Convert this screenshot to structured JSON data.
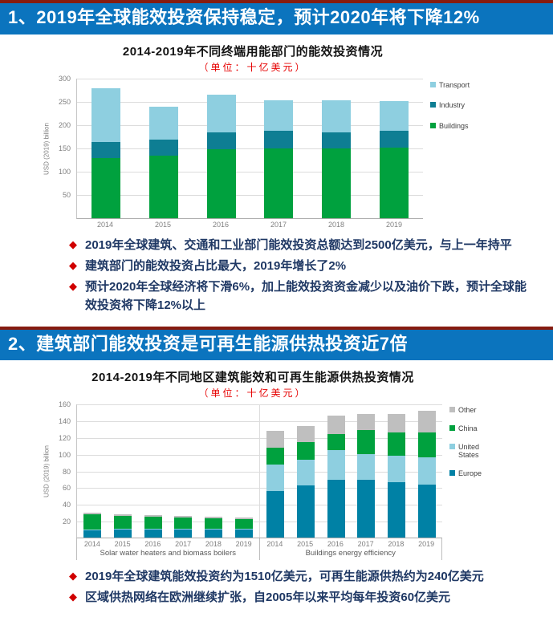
{
  "theme": {
    "header_bg": "#0B74BE",
    "accent_line": "#861C10",
    "bullet_diamond": "#D00000",
    "bullet_text": "#1F3864",
    "subtitle_color": "#E60000"
  },
  "sections": [
    {
      "header": "1、2019年全球能效投资保持稳定，预计2020年将下降12%",
      "bullets": [
        "2019年全球建筑、交通和工业部门能效投资总额达到2500亿美元，与上一年持平",
        "建筑部门的能效投资占比最大，2019年增长了2%",
        "预计2020年全球经济将下滑6%，加上能效投资资金减少以及油价下跌，预计全球能效投资将下降12%以上"
      ]
    },
    {
      "header": "2、建筑部门能效投资是可再生能源供热投资近7倍",
      "bullets": [
        "2019年全球建筑能效投资约为1510亿美元，可再生能源供热约为240亿美元",
        "区域供热网络在欧洲继续扩张，自2005年以来平均每年投资60亿美元"
      ]
    }
  ],
  "chart_data": [
    {
      "type": "bar",
      "stacked": true,
      "title": "2014-2019年不同终端用能部门的能效投资情况",
      "subtitle": "（单位：十亿美元）",
      "ylabel": "USD (2019) billion",
      "ylim": [
        0,
        300
      ],
      "ytick_step": 50,
      "grid": true,
      "legend_position": "right",
      "categories": [
        "2014",
        "2015",
        "2016",
        "2017",
        "2018",
        "2019"
      ],
      "series": [
        {
          "name": "Buildings",
          "color": "#00A13E",
          "values": [
            127,
            133,
            146,
            149,
            148,
            150
          ]
        },
        {
          "name": "Industry",
          "color": "#0E7E93",
          "values": [
            35,
            35,
            36,
            37,
            35,
            36
          ]
        },
        {
          "name": "Transport",
          "color": "#8ECFE0",
          "values": [
            115,
            70,
            82,
            65,
            69,
            64
          ]
        }
      ],
      "legend_order": [
        "Transport",
        "Industry",
        "Buildings"
      ]
    },
    {
      "type": "bar",
      "stacked": true,
      "title": "2014-2019年不同地区建筑能效和可再生能源供热投资情况",
      "subtitle": "（单位：十亿美元）",
      "ylabel": "USD (2019) billion",
      "ylim": [
        0,
        160
      ],
      "ytick_step": 20,
      "grid": true,
      "legend_position": "right",
      "series": [
        {
          "name": "Europe",
          "color": "#0081A5"
        },
        {
          "name": "United States",
          "color": "#8ECFE0"
        },
        {
          "name": "China",
          "color": "#00A13E"
        },
        {
          "name": "Other",
          "color": "#BFBFBF"
        }
      ],
      "groups": [
        {
          "label": "Solar water heaters and biomass boilers",
          "categories": [
            "2014",
            "2015",
            "2016",
            "2017",
            "2018",
            "2019"
          ],
          "series_values": {
            "Europe": [
              9,
              10,
              10,
              10,
              10,
              10
            ],
            "United States": [
              1,
              1,
              1,
              1,
              1,
              1
            ],
            "China": [
              18,
              15,
              14,
              13,
              12,
              11
            ],
            "Other": [
              2,
              2,
              2,
              2,
              2,
              2
            ]
          }
        },
        {
          "label": "Buildings energy efficiency",
          "categories": [
            "2014",
            "2015",
            "2016",
            "2017",
            "2018",
            "2019"
          ],
          "series_values": {
            "Europe": [
              56,
              62,
              69,
              69,
              66,
              63
            ],
            "United States": [
              31,
              31,
              35,
              31,
              32,
              33
            ],
            "China": [
              20,
              21,
              20,
              28,
              28,
              30
            ],
            "Other": [
              20,
              19,
              22,
              20,
              22,
              25
            ]
          }
        }
      ],
      "legend_order": [
        "Other",
        "China",
        "United States",
        "Europe"
      ]
    }
  ]
}
